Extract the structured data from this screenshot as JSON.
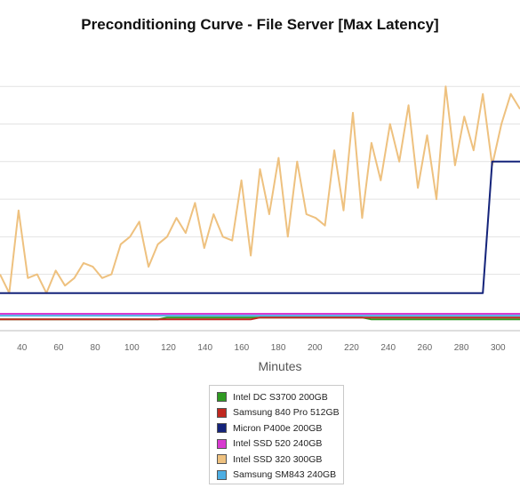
{
  "chart_data": {
    "type": "line",
    "title": "Preconditioning Curve - File Server [Max Latency]",
    "xlabel": "Minutes",
    "ylabel": "",
    "xlim": [
      28,
      312
    ],
    "ylim": [
      0,
      7.5
    ],
    "x_ticks": [
      "40",
      "60",
      "80",
      "100",
      "120",
      "140",
      "160",
      "180",
      "200",
      "220",
      "240",
      "260",
      "280",
      "300"
    ],
    "x_tick_values": [
      40,
      60,
      80,
      100,
      120,
      140,
      160,
      180,
      200,
      220,
      240,
      260,
      280,
      300
    ],
    "y_gridlines": [
      1.5,
      2.5,
      3.5,
      4.5,
      5.5,
      6.5
    ],
    "grid": true,
    "legend_position": "bottom-center",
    "series": [
      {
        "name": "Intel DC S3700 200GB",
        "color": "#2f9a22",
        "values": [
          0.3,
          0.3,
          0.3,
          0.3,
          0.3,
          0.3,
          0.3,
          0.3,
          0.3,
          0.3,
          0.3,
          0.3,
          0.3,
          0.3,
          0.3,
          0.3,
          0.3,
          0.3,
          0.35,
          0.35,
          0.35,
          0.35,
          0.35,
          0.35,
          0.35,
          0.35,
          0.35,
          0.35,
          0.35,
          0.35,
          0.35,
          0.35,
          0.35,
          0.35,
          0.35,
          0.35,
          0.35,
          0.35,
          0.35,
          0.35,
          0.3,
          0.3,
          0.3,
          0.3,
          0.3,
          0.3,
          0.3,
          0.3,
          0.3,
          0.3,
          0.3,
          0.3,
          0.3,
          0.3,
          0.3,
          0.3,
          0.3
        ]
      },
      {
        "name": "Samsung 840 Pro 512GB",
        "color": "#c0271f",
        "values": [
          0.3,
          0.3,
          0.3,
          0.3,
          0.3,
          0.3,
          0.3,
          0.3,
          0.3,
          0.3,
          0.3,
          0.3,
          0.3,
          0.3,
          0.3,
          0.3,
          0.3,
          0.3,
          0.3,
          0.3,
          0.3,
          0.3,
          0.3,
          0.3,
          0.3,
          0.3,
          0.3,
          0.3,
          0.35,
          0.35,
          0.35,
          0.35,
          0.35,
          0.35,
          0.35,
          0.35,
          0.35,
          0.35,
          0.35,
          0.35,
          0.35,
          0.35,
          0.35,
          0.35,
          0.35,
          0.35,
          0.35,
          0.35,
          0.35,
          0.35,
          0.35,
          0.35,
          0.35,
          0.35,
          0.35,
          0.35,
          0.35
        ]
      },
      {
        "name": "Micron P400e 200GB",
        "color": "#14237a",
        "values": [
          1.0,
          1.0,
          1.0,
          1.0,
          1.0,
          1.0,
          1.0,
          1.0,
          1.0,
          1.0,
          1.0,
          1.0,
          1.0,
          1.0,
          1.0,
          1.0,
          1.0,
          1.0,
          1.0,
          1.0,
          1.0,
          1.0,
          1.0,
          1.0,
          1.0,
          1.0,
          1.0,
          1.0,
          1.0,
          1.0,
          1.0,
          1.0,
          1.0,
          1.0,
          1.0,
          1.0,
          1.0,
          1.0,
          1.0,
          1.0,
          1.0,
          1.0,
          1.0,
          1.0,
          1.0,
          1.0,
          1.0,
          1.0,
          1.0,
          1.0,
          1.0,
          1.0,
          1.0,
          4.5,
          4.5,
          4.5,
          4.5
        ]
      },
      {
        "name": "Intel SSD 520 240GB",
        "color": "#d83ad0",
        "values": [
          0.45,
          0.45,
          0.45,
          0.45,
          0.45,
          0.45,
          0.45,
          0.45,
          0.45,
          0.45,
          0.45,
          0.45,
          0.45,
          0.45,
          0.45,
          0.45,
          0.45,
          0.45,
          0.45,
          0.45,
          0.45,
          0.45,
          0.45,
          0.45,
          0.45,
          0.45,
          0.45,
          0.45,
          0.45,
          0.45,
          0.45,
          0.45,
          0.45,
          0.45,
          0.45,
          0.45,
          0.45,
          0.45,
          0.45,
          0.45,
          0.45,
          0.45,
          0.45,
          0.45,
          0.45,
          0.45,
          0.45,
          0.45,
          0.45,
          0.45,
          0.45,
          0.45,
          0.45,
          0.45,
          0.45,
          0.45,
          0.45
        ]
      },
      {
        "name": "Intel SSD 320 300GB",
        "color": "#eec17f",
        "values": [
          1.5,
          1.0,
          3.2,
          1.4,
          1.5,
          1.0,
          1.6,
          1.2,
          1.4,
          1.8,
          1.7,
          1.4,
          1.5,
          2.3,
          2.5,
          2.9,
          1.7,
          2.3,
          2.5,
          3.0,
          2.6,
          3.4,
          2.2,
          3.1,
          2.5,
          2.4,
          4.0,
          2.0,
          4.3,
          3.1,
          4.6,
          2.5,
          4.5,
          3.1,
          3.0,
          2.8,
          4.8,
          3.2,
          5.8,
          3.0,
          5.0,
          4.0,
          5.5,
          4.5,
          6.0,
          3.8,
          5.2,
          3.5,
          6.5,
          4.4,
          5.7,
          4.8,
          6.3,
          4.4,
          5.5,
          6.3,
          5.9
        ]
      },
      {
        "name": "Samsung SM843 240GB",
        "color": "#4daee3",
        "values": [
          0.4,
          0.4,
          0.4,
          0.4,
          0.4,
          0.4,
          0.4,
          0.4,
          0.4,
          0.4,
          0.4,
          0.4,
          0.4,
          0.4,
          0.4,
          0.4,
          0.4,
          0.4,
          0.4,
          0.4,
          0.4,
          0.4,
          0.4,
          0.4,
          0.4,
          0.4,
          0.4,
          0.4,
          0.4,
          0.4,
          0.4,
          0.4,
          0.4,
          0.4,
          0.4,
          0.4,
          0.4,
          0.4,
          0.4,
          0.4,
          0.4,
          0.4,
          0.4,
          0.4,
          0.4,
          0.4,
          0.4,
          0.4,
          0.4,
          0.4,
          0.4,
          0.4,
          0.4,
          0.4,
          0.4,
          0.4,
          0.4
        ]
      }
    ]
  }
}
